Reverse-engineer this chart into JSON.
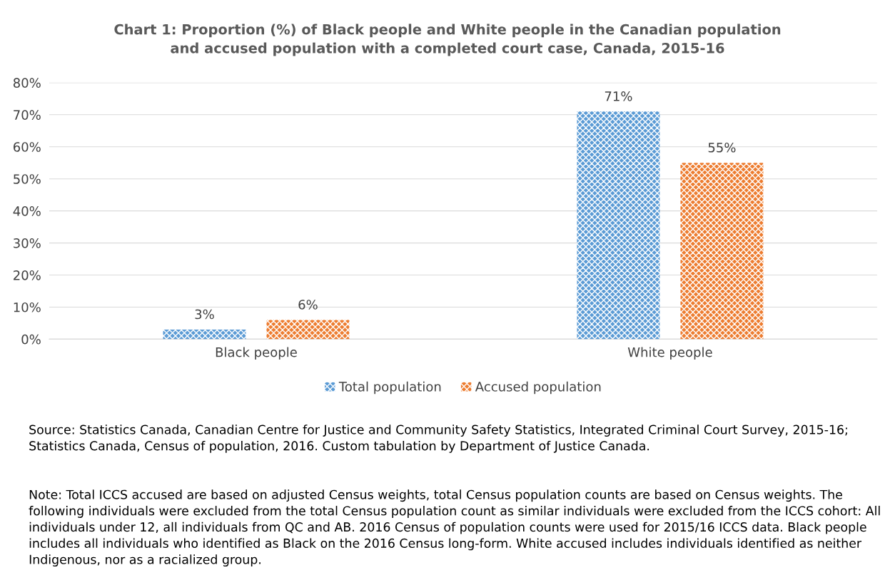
{
  "chart_data": {
    "type": "bar",
    "title": "Chart 1: Proportion (%) of Black people and White people in the Canadian population\nand accused population with a completed court case, Canada, 2015-16",
    "categories": [
      "Black people",
      "White people"
    ],
    "series": [
      {
        "name": "Total population",
        "color": "#5b9bd5",
        "values": [
          3,
          71
        ],
        "value_labels": [
          "3%",
          "71%"
        ]
      },
      {
        "name": "Accused population",
        "color": "#ed7d31",
        "values": [
          6,
          55
        ],
        "value_labels": [
          "6%",
          "55%"
        ]
      }
    ],
    "ylim": [
      0,
      80
    ],
    "yticks": [
      {
        "value": 0,
        "label": "0%"
      },
      {
        "value": 10,
        "label": "10%"
      },
      {
        "value": 20,
        "label": "20%"
      },
      {
        "value": 30,
        "label": "30%"
      },
      {
        "value": 40,
        "label": "40%"
      },
      {
        "value": 50,
        "label": "50%"
      },
      {
        "value": 60,
        "label": "60%"
      },
      {
        "value": 70,
        "label": "70%"
      },
      {
        "value": 80,
        "label": "80%"
      }
    ],
    "grid": "y",
    "legend": "bottom",
    "annotations": [
      "Source: Statistics Canada, Canadian Centre for Justice and Community Safety Statistics, Integrated Criminal Court Survey, 2015-16; Statistics Canada, Census of population, 2016. Custom tabulation by Department of Justice Canada.",
      "Note: Total ICCS accused are based on adjusted Census weights, total Census population counts are based on Census weights. The following individuals were excluded from the total Census population count as similar individuals were excluded from the ICCS cohort: All individuals under 12, all individuals from QC and AB. 2016 Census of population counts were used for 2015/16 ICCS data. Black people includes all individuals who identified as Black on the 2016 Census long-form. White accused includes individuals identified as neither Indigenous, nor as a racialized group."
    ]
  }
}
